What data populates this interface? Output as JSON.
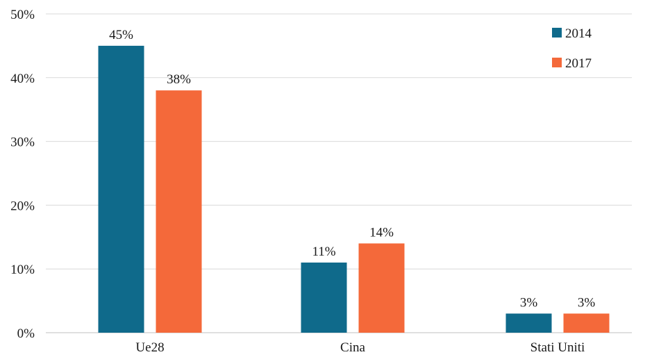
{
  "chart_data": {
    "type": "bar",
    "title": "",
    "xlabel": "",
    "ylabel": "",
    "categories": [
      "Ue28",
      "Cina",
      "Stati Uniti"
    ],
    "series": [
      {
        "name": "2014",
        "values": [
          45,
          11,
          3
        ],
        "labels": [
          "45%",
          "11%",
          "3%"
        ],
        "color": "#0f6a8b"
      },
      {
        "name": "2017",
        "values": [
          38,
          14,
          3
        ],
        "labels": [
          "38%",
          "14%",
          "3%"
        ],
        "color": "#f4693a"
      }
    ],
    "ylim": [
      0,
      50
    ],
    "y_ticks": [
      {
        "value": 0,
        "label": "0%"
      },
      {
        "value": 10,
        "label": "10%"
      },
      {
        "value": 20,
        "label": "20%"
      },
      {
        "value": 30,
        "label": "30%"
      },
      {
        "value": 40,
        "label": "40%"
      },
      {
        "value": 50,
        "label": "50%"
      }
    ],
    "grid": true,
    "legend_position": "top-right"
  }
}
